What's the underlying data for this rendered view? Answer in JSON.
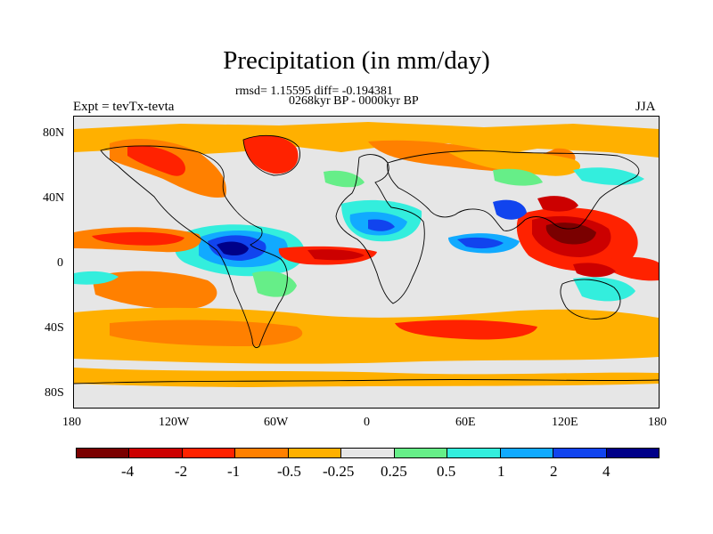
{
  "title": "Precipitation (in mm/day)",
  "stats_line": "rmsd= 1.15595 diff= -0.194381",
  "period_line": "0268kyr BP - 0000kyr BP",
  "experiment_label": "Expt = tevTx-tevta",
  "season_label": "JJA",
  "lat_ticks": [
    "80N",
    "40N",
    "0",
    "40S",
    "80S"
  ],
  "lon_ticks": [
    "180",
    "120W",
    "60W",
    "0",
    "60E",
    "120E",
    "180"
  ],
  "colorbar": {
    "labels": [
      "-4",
      "-2",
      "-1",
      "-0.5",
      "-0.25",
      "0.25",
      "0.5",
      "1",
      "2",
      "4"
    ],
    "colors": [
      "#7a0000",
      "#cc0000",
      "#ff2200",
      "#ff8000",
      "#ffb000",
      "#e6e6e6",
      "#66ee88",
      "#33eedd",
      "#11aaff",
      "#1144ee",
      "#000088"
    ]
  }
}
